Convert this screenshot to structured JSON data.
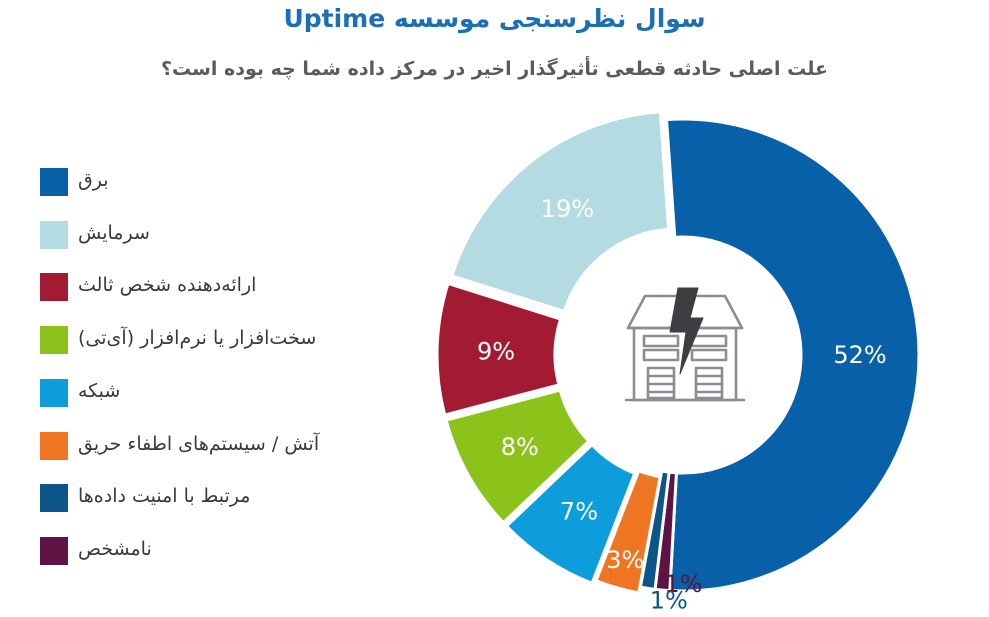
{
  "chart_data": {
    "type": "pie",
    "title": "سوال نظرسنجی موسسه Uptime",
    "subtitle": "علت اصلی حادثه قطعی تأثیرگذار اخیر در مرکز داده شما چه بوده است؟",
    "slices": [
      {
        "name": "برق",
        "value": 52,
        "label": "52%",
        "color": "#0760a8"
      },
      {
        "name": "نامشخص",
        "value": 1,
        "label": "1%",
        "color": "#5e1442"
      },
      {
        "name": "مرتبط با امنیت داده‌ها",
        "value": 1,
        "label": "1%",
        "color": "#0c5589"
      },
      {
        "name": "آتش / سیستم‌های اطفاء حریق",
        "value": 3,
        "label": "3%",
        "color": "#f07523"
      },
      {
        "name": "شبکه",
        "value": 7,
        "label": "7%",
        "color": "#0d9ddb"
      },
      {
        "name": "سخت‌افزار یا نرم‌افزار (آی‌تی)",
        "value": 8,
        "label": "8%",
        "color": "#8cc31a"
      },
      {
        "name": "ارائه‌دهنده شخص ثالث",
        "value": 9,
        "label": "9%",
        "color": "#a31b33"
      },
      {
        "name": "سرمایش",
        "value": 19,
        "label": "19%",
        "color": "#b4dbe1"
      }
    ],
    "legend": [
      {
        "label": "برق",
        "color": "#0760a8"
      },
      {
        "label": "سرمایش",
        "color": "#b4dbe1"
      },
      {
        "label": "ارائه‌دهنده شخص ثالث",
        "color": "#a31b33"
      },
      {
        "label": "سخت‌افزار یا نرم‌افزار (آی‌تی)",
        "color": "#8cc31a"
      },
      {
        "label": "شبکه",
        "color": "#0d9ddb"
      },
      {
        "label": "آتش / سیستم‌های اطفاء حریق",
        "color": "#f07523"
      },
      {
        "label": "مرتبط با امنیت داده‌ها",
        "color": "#0c5589"
      },
      {
        "label": "نامشخص",
        "color": "#5e1442"
      }
    ],
    "legend_position": "left",
    "center_icon": "datacenter-lightning-icon"
  }
}
